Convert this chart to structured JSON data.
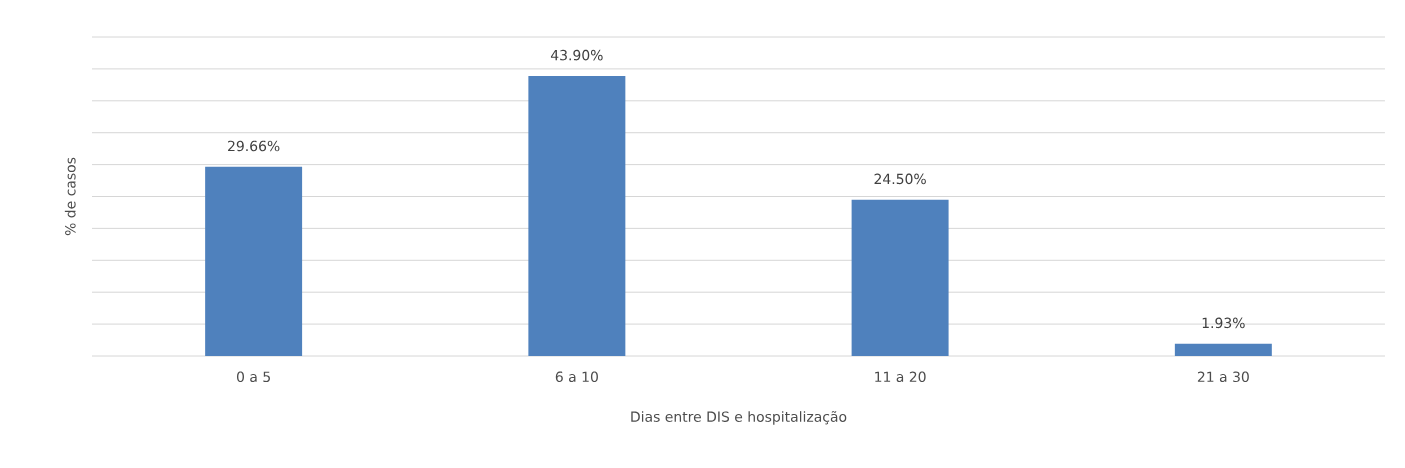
{
  "chart_data": {
    "type": "bar",
    "xlabel": "Dias entre DIS e hospitalização",
    "ylabel": "% de casos",
    "categories": [
      "0 a 5",
      "6 a 10",
      "11 a 20",
      "21 a 30"
    ],
    "values": [
      29.66,
      43.9,
      24.5,
      1.93
    ],
    "value_labels": [
      "29.66%",
      "43.90%",
      "24.50%",
      "1.93%"
    ],
    "color": "#4f81bd",
    "ylim": [
      0,
      50
    ],
    "yticks": [
      {
        "value": 0,
        "label": null
      },
      {
        "value": 5,
        "label": null
      },
      {
        "value": 10,
        "label": null
      },
      {
        "value": 15,
        "label": null
      },
      {
        "value": 20,
        "label": null
      },
      {
        "value": 25,
        "label": null
      },
      {
        "value": 30,
        "label": null
      },
      {
        "value": 35,
        "label": null
      },
      {
        "value": 40,
        "label": null
      },
      {
        "value": 45,
        "label": null
      },
      {
        "value": 50,
        "label": null
      }
    ],
    "grid": "y",
    "tick_labels": "x"
  }
}
